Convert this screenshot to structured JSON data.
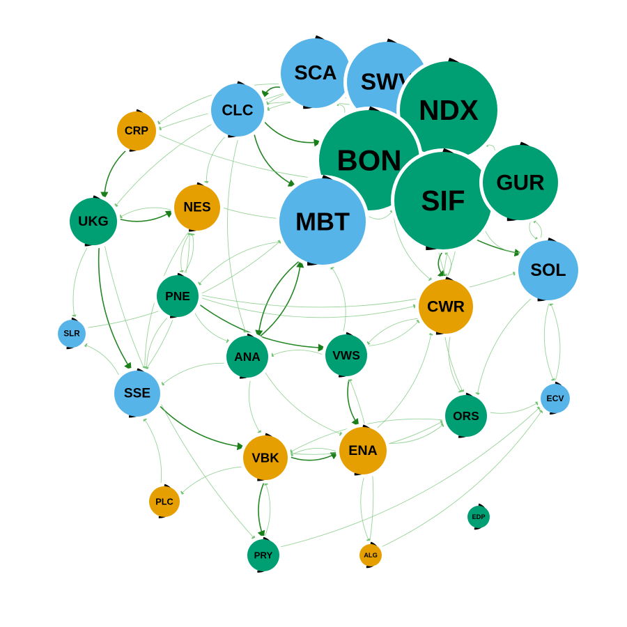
{
  "colors": {
    "blue": "#56B4E9",
    "green": "#009E73",
    "orange": "#E69F00",
    "edge_light": "#74c476",
    "edge_dark": "#1a7f1a",
    "ring": "#000000"
  },
  "nodes": [
    {
      "id": "SCA",
      "label": "SCA",
      "color": "blue"
    },
    {
      "id": "SWV",
      "label": "SWV",
      "color": "blue"
    },
    {
      "id": "NDX",
      "label": "NDX",
      "color": "green"
    },
    {
      "id": "BON",
      "label": "BON",
      "color": "green"
    },
    {
      "id": "SIF",
      "label": "SIF",
      "color": "green"
    },
    {
      "id": "GUR",
      "label": "GUR",
      "color": "green"
    },
    {
      "id": "MBT",
      "label": "MBT",
      "color": "blue"
    },
    {
      "id": "CLC",
      "label": "CLC",
      "color": "blue"
    },
    {
      "id": "CRP",
      "label": "CRP",
      "color": "orange"
    },
    {
      "id": "NES",
      "label": "NES",
      "color": "orange"
    },
    {
      "id": "UKG",
      "label": "UKG",
      "color": "green"
    },
    {
      "id": "SOL",
      "label": "SOL",
      "color": "blue"
    },
    {
      "id": "CWR",
      "label": "CWR",
      "color": "orange"
    },
    {
      "id": "PNE",
      "label": "PNE",
      "color": "green"
    },
    {
      "id": "SLR",
      "label": "SLR",
      "color": "blue"
    },
    {
      "id": "ANA",
      "label": "ANA",
      "color": "green"
    },
    {
      "id": "VWS",
      "label": "VWS",
      "color": "green"
    },
    {
      "id": "SSE",
      "label": "SSE",
      "color": "blue"
    },
    {
      "id": "ORS",
      "label": "ORS",
      "color": "green"
    },
    {
      "id": "ECV",
      "label": "ECV",
      "color": "blue"
    },
    {
      "id": "ENA",
      "label": "ENA",
      "color": "orange"
    },
    {
      "id": "VBK",
      "label": "VBK",
      "color": "orange"
    },
    {
      "id": "PLC",
      "label": "PLC",
      "color": "orange"
    },
    {
      "id": "EDP",
      "label": "EDP",
      "color": "green"
    },
    {
      "id": "PRY",
      "label": "PRY",
      "color": "green"
    },
    {
      "id": "ALG",
      "label": "ALG",
      "color": "orange"
    }
  ],
  "edges": [
    {
      "from": "CRP",
      "to": "UKG",
      "strength": "dark"
    },
    {
      "from": "UKG",
      "to": "NES",
      "strength": "dark"
    },
    {
      "from": "UKG",
      "to": "SSE",
      "strength": "dark"
    },
    {
      "from": "UKG",
      "to": "SLR",
      "strength": "light"
    },
    {
      "from": "NES",
      "to": "UKG",
      "strength": "light"
    },
    {
      "from": "NES",
      "to": "PNE",
      "strength": "light"
    },
    {
      "from": "NES",
      "to": "SSE",
      "strength": "light"
    },
    {
      "from": "PNE",
      "to": "NES",
      "strength": "light"
    },
    {
      "from": "PNE",
      "to": "ANA",
      "strength": "light"
    },
    {
      "from": "PNE",
      "to": "VWS",
      "strength": "dark"
    },
    {
      "from": "PNE",
      "to": "SSE",
      "strength": "light"
    },
    {
      "from": "PNE",
      "to": "CWR",
      "strength": "light"
    },
    {
      "from": "SCA",
      "to": "CLC",
      "strength": "dark"
    },
    {
      "from": "SCA",
      "to": "CRP",
      "strength": "light"
    },
    {
      "from": "SCA",
      "to": "UKG",
      "strength": "light"
    },
    {
      "from": "CLC",
      "to": "MBT",
      "strength": "dark"
    },
    {
      "from": "CLC",
      "to": "ANA",
      "strength": "light"
    },
    {
      "from": "CLC",
      "to": "NES",
      "strength": "light"
    },
    {
      "from": "CLC",
      "to": "BON",
      "strength": "dark"
    },
    {
      "from": "SWV",
      "to": "CLC",
      "strength": "light"
    },
    {
      "from": "SWV",
      "to": "SCA",
      "strength": "light"
    },
    {
      "from": "NDX",
      "to": "CLC",
      "strength": "light"
    },
    {
      "from": "NDX",
      "to": "CWR",
      "strength": "light"
    },
    {
      "from": "NDX",
      "to": "CRP",
      "strength": "light"
    },
    {
      "from": "BON",
      "to": "SCA",
      "strength": "light"
    },
    {
      "from": "BON",
      "to": "CWR",
      "strength": "light"
    },
    {
      "from": "BON",
      "to": "SOL",
      "strength": "dark"
    },
    {
      "from": "SIF",
      "to": "CWR",
      "strength": "dark"
    },
    {
      "from": "SIF",
      "to": "SOL",
      "strength": "light"
    },
    {
      "from": "SIF",
      "to": "ORS",
      "strength": "light"
    },
    {
      "from": "GUR",
      "to": "NDX",
      "strength": "light"
    },
    {
      "from": "GUR",
      "to": "SOL",
      "strength": "light"
    },
    {
      "from": "SOL",
      "to": "GUR",
      "strength": "light"
    },
    {
      "from": "SOL",
      "to": "ORS",
      "strength": "light"
    },
    {
      "from": "SOL",
      "to": "ECV",
      "strength": "light"
    },
    {
      "from": "ECV",
      "to": "SOL",
      "strength": "light"
    },
    {
      "from": "MBT",
      "to": "ANA",
      "strength": "dark"
    },
    {
      "from": "MBT",
      "to": "PNE",
      "strength": "light"
    },
    {
      "from": "MBT",
      "to": "SIF",
      "strength": "light"
    },
    {
      "from": "ANA",
      "to": "MBT",
      "strength": "dark"
    },
    {
      "from": "ANA",
      "to": "SSE",
      "strength": "light"
    },
    {
      "from": "ANA",
      "to": "ENA",
      "strength": "light"
    },
    {
      "from": "ANA",
      "to": "VBK",
      "strength": "light"
    },
    {
      "from": "VWS",
      "to": "MBT",
      "strength": "light"
    },
    {
      "from": "VWS",
      "to": "ANA",
      "strength": "light"
    },
    {
      "from": "VWS",
      "to": "ENA",
      "strength": "dark"
    },
    {
      "from": "VWS",
      "to": "CWR",
      "strength": "light"
    },
    {
      "from": "CWR",
      "to": "VWS",
      "strength": "light"
    },
    {
      "from": "CWR",
      "to": "ORS",
      "strength": "light"
    },
    {
      "from": "CWR",
      "to": "SIF",
      "strength": "light"
    },
    {
      "from": "CWR",
      "to": "NDX",
      "strength": "light"
    },
    {
      "from": "SSE",
      "to": "VBK",
      "strength": "dark"
    },
    {
      "from": "SSE",
      "to": "NES",
      "strength": "light"
    },
    {
      "from": "SSE",
      "to": "SLR",
      "strength": "light"
    },
    {
      "from": "SLR",
      "to": "MBT",
      "strength": "light"
    },
    {
      "from": "ENA",
      "to": "ORS",
      "strength": "light"
    },
    {
      "from": "ENA",
      "to": "ALG",
      "strength": "light"
    },
    {
      "from": "ENA",
      "to": "CWR",
      "strength": "light"
    },
    {
      "from": "ENA",
      "to": "VBK",
      "strength": "light"
    },
    {
      "from": "VBK",
      "to": "ENA",
      "strength": "dark"
    },
    {
      "from": "VBK",
      "to": "PRY",
      "strength": "dark"
    },
    {
      "from": "VBK",
      "to": "PLC",
      "strength": "light"
    },
    {
      "from": "VBK",
      "to": "ORS",
      "strength": "light"
    },
    {
      "from": "ORS",
      "to": "ECV",
      "strength": "light"
    },
    {
      "from": "ORS",
      "to": "VBK",
      "strength": "light"
    },
    {
      "from": "PLC",
      "to": "SSE",
      "strength": "light"
    },
    {
      "from": "PRY",
      "to": "ECV",
      "strength": "light"
    },
    {
      "from": "PRY",
      "to": "VBK",
      "strength": "light"
    },
    {
      "from": "ALG",
      "to": "VWS",
      "strength": "light"
    },
    {
      "from": "ALG",
      "to": "ECV",
      "strength": "light"
    },
    {
      "from": "UKG",
      "to": "PRY",
      "strength": "light"
    },
    {
      "from": "CRP",
      "to": "GUR",
      "strength": "light"
    },
    {
      "from": "NES",
      "to": "SIF",
      "strength": "light"
    },
    {
      "from": "PNE",
      "to": "SOL",
      "strength": "light"
    }
  ]
}
